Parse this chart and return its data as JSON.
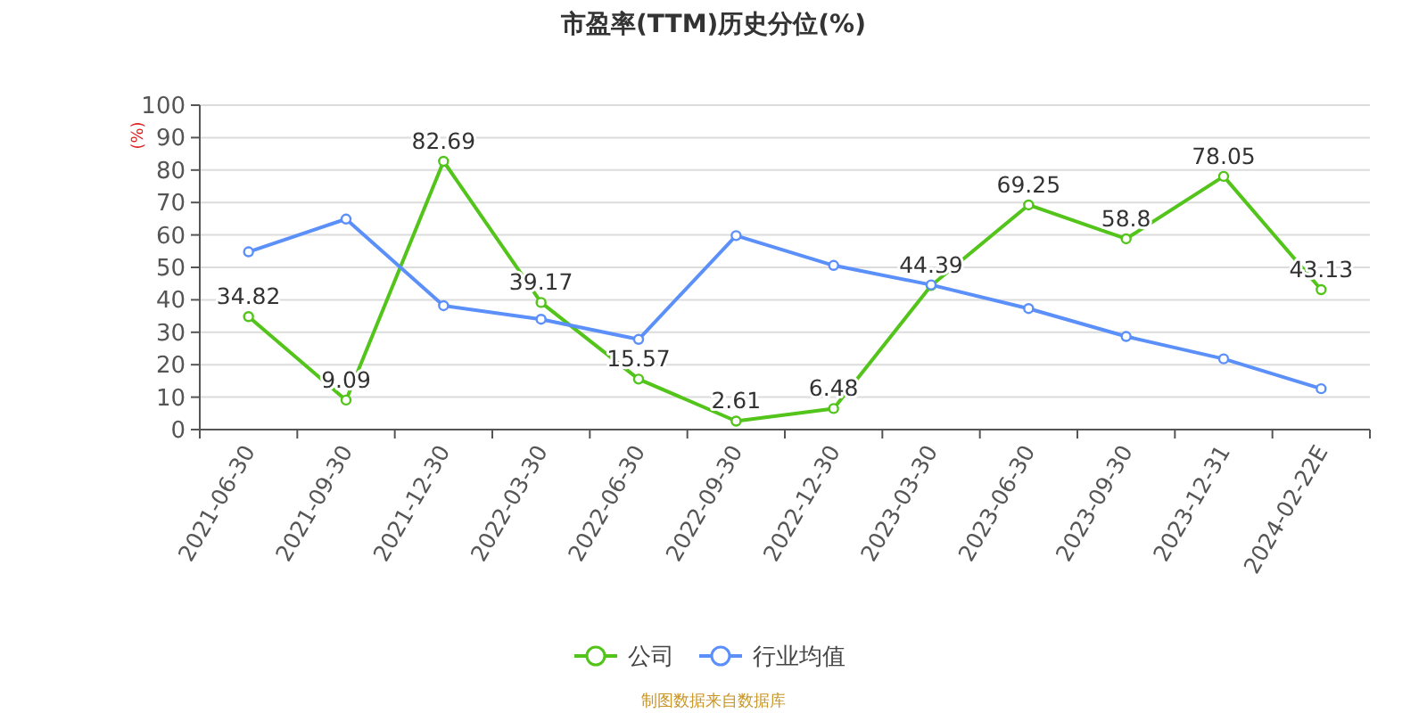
{
  "chart_data": {
    "type": "line",
    "title": "市盈率(TTM)历史分位(%)",
    "ylabel": "(%)",
    "categories": [
      "2021-06-30",
      "2021-09-30",
      "2021-12-30",
      "2022-03-30",
      "2022-06-30",
      "2022-09-30",
      "2022-12-30",
      "2023-03-30",
      "2023-06-30",
      "2023-09-30",
      "2023-12-31",
      "2024-02-22E"
    ],
    "series": [
      {
        "name": "公司",
        "color": "#52c41a",
        "values": [
          34.82,
          9.09,
          82.69,
          39.17,
          15.57,
          2.61,
          6.48,
          44.39,
          69.25,
          58.8,
          78.05,
          43.13
        ],
        "value_labels": [
          "34.82",
          "9.09",
          "82.69",
          "39.17",
          "15.57",
          "2.61",
          "6.48",
          "44.39",
          "69.25",
          "58.8",
          "78.05",
          "43.13"
        ]
      },
      {
        "name": "行业均值",
        "color": "#5b8ff9",
        "values": [
          54.8,
          64.9,
          38.2,
          34.0,
          27.8,
          59.8,
          50.6,
          44.6,
          37.3,
          28.7,
          21.8,
          12.6
        ]
      }
    ],
    "ylim": [
      0,
      100
    ],
    "yticks": [
      0,
      10,
      20,
      30,
      40,
      50,
      60,
      70,
      80,
      90,
      100
    ],
    "grid": "y",
    "legend": "bottom",
    "marker": "circle",
    "line_style": "solid",
    "annotations": [
      "制图数据来自数据库"
    ]
  }
}
